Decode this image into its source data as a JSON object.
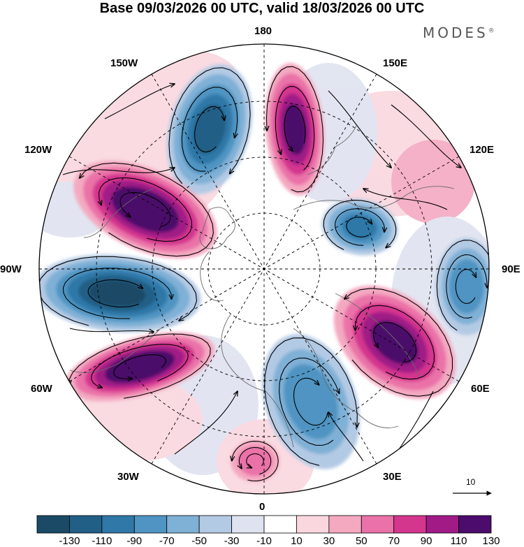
{
  "title": "Base 09/03/2026 00 UTC, valid 18/03/2026 00 UTC",
  "brand": "MODES",
  "brand_mark": "®",
  "longitude_labels": {
    "l180": "180",
    "l150e": "150E",
    "l120e": "120E",
    "l90e": "90E",
    "l60e": "60E",
    "l30e": "30E",
    "l0": "0",
    "l30w": "30W",
    "l60w": "60W",
    "l90w": "90W",
    "l120w": "120W",
    "l150w": "150W"
  },
  "reference_vector": "10",
  "colorbar": {
    "ticks": [
      "-130",
      "-110",
      "-90",
      "-70",
      "-50",
      "-30",
      "-10",
      "10",
      "30",
      "50",
      "70",
      "90",
      "110",
      "130"
    ],
    "colors": [
      "#1a4a66",
      "#215f86",
      "#2f78a8",
      "#4f94c2",
      "#7fb0d6",
      "#b3cae4",
      "#dfe3f0",
      "#ffffff",
      "#fad7df",
      "#f4a9c1",
      "#ea72a8",
      "#d4368e",
      "#a01b86",
      "#4b0c6b"
    ]
  },
  "anomaly_centers": [
    {
      "sector": "150W-165W",
      "value": -110
    },
    {
      "sector": "170E",
      "value": 110
    },
    {
      "sector": "120W",
      "value": 130
    },
    {
      "sector": "90W",
      "value": -130
    },
    {
      "sector": "60W",
      "value": 130
    },
    {
      "sector": "110E",
      "value": -90
    },
    {
      "sector": "90E",
      "value": -70
    },
    {
      "sector": "60E",
      "value": 110
    },
    {
      "sector": "20E",
      "value": -70
    },
    {
      "sector": "0",
      "value": 50
    }
  ]
}
